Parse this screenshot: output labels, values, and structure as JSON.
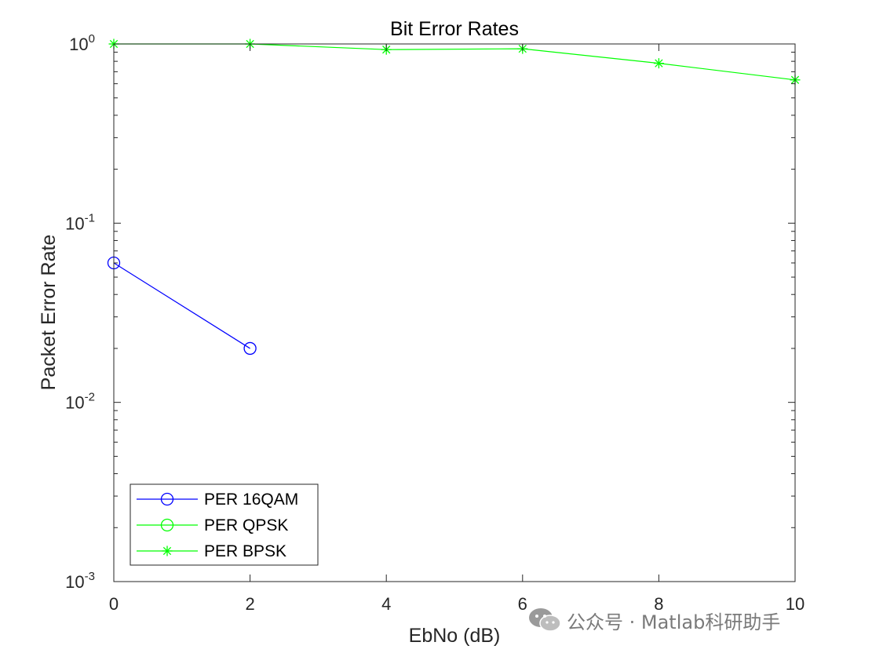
{
  "chart_data": {
    "type": "line",
    "title": "Bit Error Rates",
    "xlabel": "EbNo (dB)",
    "ylabel": "Packet Error Rate",
    "xlim": [
      0,
      10
    ],
    "ylim": [
      0.001,
      1
    ],
    "yscale": "log",
    "xticks": [
      0,
      2,
      4,
      6,
      8,
      10
    ],
    "yticks": [
      {
        "value": 0.001,
        "base": "10",
        "exp": "-3"
      },
      {
        "value": 0.01,
        "base": "10",
        "exp": "-2"
      },
      {
        "value": 0.1,
        "base": "10",
        "exp": "-1"
      },
      {
        "value": 1,
        "base": "10",
        "exp": "0"
      }
    ],
    "grid": false,
    "legend_position": "bottom-left",
    "series": [
      {
        "name": "PER 16QAM",
        "color": "#0000ff",
        "marker": "circle",
        "x": [
          0,
          2
        ],
        "y": [
          0.06,
          0.02
        ]
      },
      {
        "name": "PER QPSK",
        "color": "#00ff00",
        "marker": "circle",
        "x": [],
        "y": []
      },
      {
        "name": "PER BPSK",
        "color": "#00ff00",
        "marker": "asterisk",
        "x": [
          0,
          2,
          4,
          6,
          8,
          10
        ],
        "y": [
          1.0,
          1.0,
          0.93,
          0.94,
          0.78,
          0.63
        ]
      }
    ]
  },
  "watermark": {
    "icon": "wechat-icon",
    "text": "公众号 · Matlab科研助手"
  }
}
